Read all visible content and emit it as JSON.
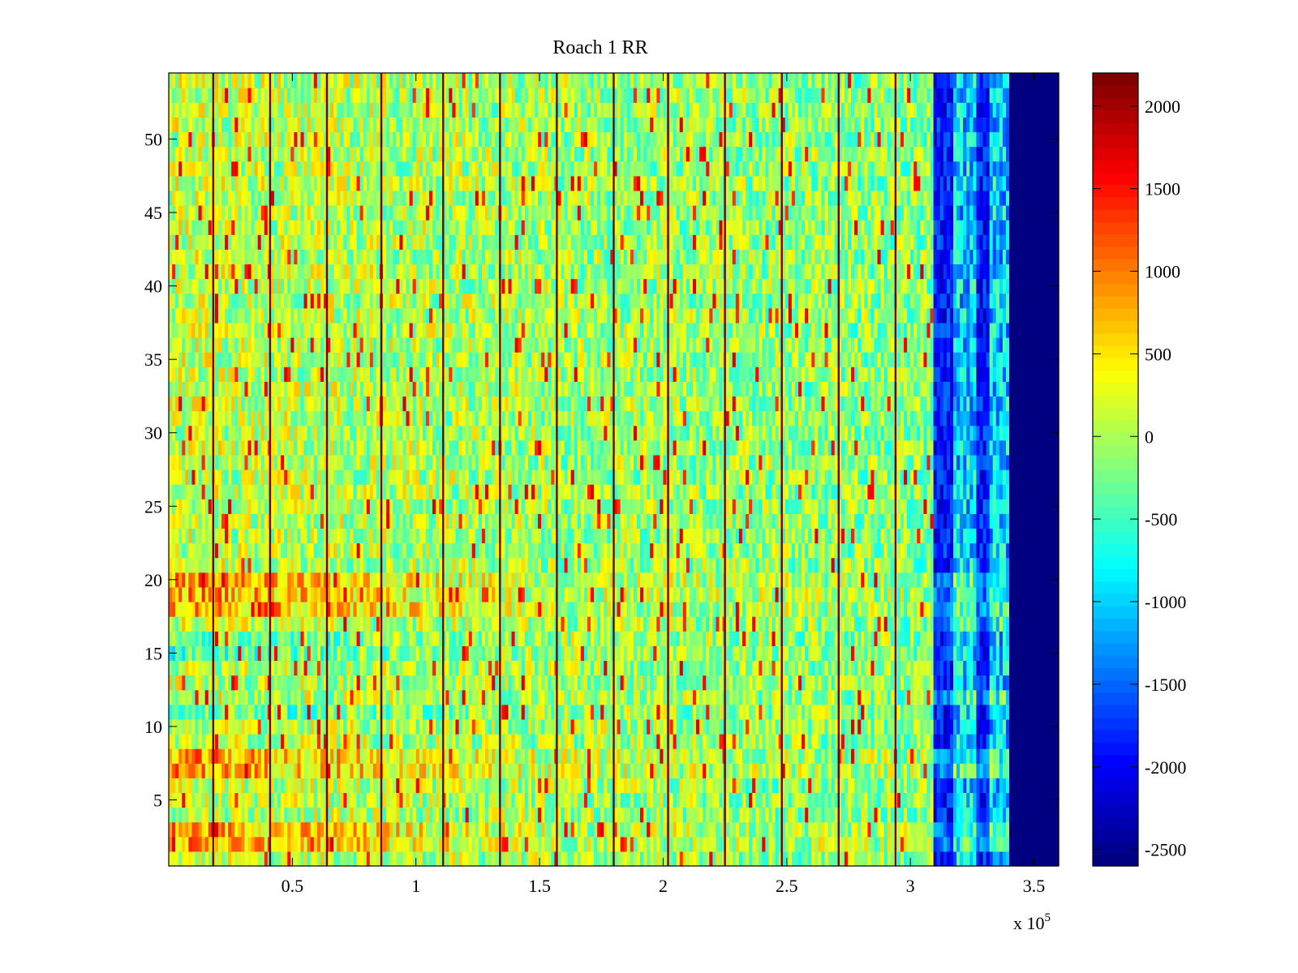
{
  "chart_data": {
    "type": "heatmap",
    "title": "Roach 1 RR",
    "xlabel": "",
    "ylabel": "",
    "x_multiplier_label": {
      "prefix": "x 10",
      "exponent": "5"
    },
    "xlim": [
      0,
      3.6
    ],
    "ylim": [
      0.5,
      54.5
    ],
    "x_ticks": [
      0.5,
      1,
      1.5,
      2,
      2.5,
      3,
      3.5
    ],
    "x_tick_labels": [
      "0.5",
      "1",
      "1.5",
      "2",
      "2.5",
      "3",
      "3.5"
    ],
    "y_ticks": [
      5,
      10,
      15,
      20,
      25,
      30,
      35,
      40,
      45,
      50
    ],
    "y_tick_labels": [
      "5",
      "10",
      "15",
      "20",
      "25",
      "30",
      "35",
      "40",
      "45",
      "50"
    ],
    "rows": 54,
    "colormap": "jet",
    "clim": [
      -2600,
      2200
    ],
    "colorbar_ticks": [
      2000,
      1500,
      1000,
      500,
      0,
      -500,
      -1000,
      -1500,
      -2000,
      -2500
    ],
    "colorbar_tick_labels": [
      "2000",
      "1500",
      "1000",
      "500",
      "0",
      "-500",
      "-1000",
      "-1500",
      "-2000",
      "-2500"
    ],
    "stripe_positions_x1e5": [
      0.18,
      0.41,
      0.64,
      0.86,
      1.11,
      1.34,
      1.57,
      1.8,
      2.02,
      2.25,
      2.48,
      2.71,
      2.94
    ],
    "regions": [
      {
        "x_range": [
          0,
          3.1
        ],
        "typical_value": 100,
        "description_values": "mixed -700 to 1300"
      },
      {
        "x_range": [
          3.1,
          3.4
        ],
        "typical_value": -1500,
        "description_values": "mixed -2300 to 300"
      },
      {
        "x_range": [
          3.4,
          3.6
        ],
        "typical_value": -2600
      }
    ],
    "warm_rows_left": [
      2,
      3,
      7,
      8,
      18,
      19,
      20
    ],
    "cool_rows_left": [
      11,
      15,
      16
    ]
  }
}
